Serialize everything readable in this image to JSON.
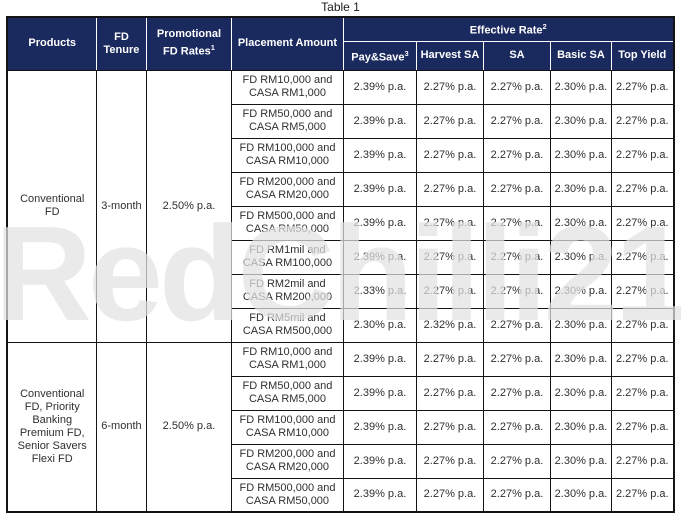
{
  "title": "Table 1",
  "watermark": "RedChilli21",
  "colors": {
    "header_bg": "#1b2a5e",
    "header_text": "#ffffff",
    "body_text": "#2f2f2f",
    "border": "#141414",
    "watermark_color": "#e2e2e2"
  },
  "header": {
    "products": "Products",
    "fd_tenure": "FD Tenure",
    "promo_rates": "Promotional FD Rates",
    "promo_rates_sup": "1",
    "placement": "Placement Amount",
    "effective_rate": "Effective Rate",
    "effective_rate_sup": "2",
    "sub": [
      {
        "label": "Pay&Save",
        "sup": "3"
      },
      {
        "label": "Harvest SA",
        "sup": ""
      },
      {
        "label": "SA",
        "sup": ""
      },
      {
        "label": "Basic SA",
        "sup": ""
      },
      {
        "label": "Top Yield",
        "sup": ""
      }
    ]
  },
  "groups": [
    {
      "product": "Conventional FD",
      "tenure": "3-month",
      "promo_rate": "2.50% p.a.",
      "rows": [
        {
          "placement_line1": "FD RM10,000 and",
          "placement_line2": "CASA RM1,000",
          "rates": [
            "2.39% p.a.",
            "2.27% p.a.",
            "2.27% p.a.",
            "2.30% p.a.",
            "2.27% p.a."
          ]
        },
        {
          "placement_line1": "FD RM50,000 and",
          "placement_line2": "CASA RM5,000",
          "rates": [
            "2.39% p.a.",
            "2.27% p.a.",
            "2.27% p.a.",
            "2.30% p.a.",
            "2.27% p.a."
          ]
        },
        {
          "placement_line1": "FD RM100,000 and",
          "placement_line2": "CASA RM10,000",
          "rates": [
            "2.39% p.a.",
            "2.27% p.a.",
            "2.27% p.a.",
            "2.30% p.a.",
            "2.27% p.a."
          ]
        },
        {
          "placement_line1": "FD RM200,000 and",
          "placement_line2": "CASA RM20,000",
          "rates": [
            "2.39% p.a.",
            "2.27% p.a.",
            "2.27% p.a.",
            "2.30% p.a.",
            "2.27% p.a."
          ]
        },
        {
          "placement_line1": "FD RM500,000 and",
          "placement_line2": "CASA RM50,000",
          "rates": [
            "2.39% p.a.",
            "2.27% p.a.",
            "2.27% p.a.",
            "2.30% p.a.",
            "2.27% p.a."
          ]
        },
        {
          "placement_line1": "FD RM1mil and",
          "placement_line2": "CASA RM100,000",
          "rates": [
            "2.39% p.a.",
            "2.27% p.a.",
            "2.27% p.a.",
            "2.30% p.a.",
            "2.27% p.a."
          ]
        },
        {
          "placement_line1": "FD RM2mil and",
          "placement_line2": "CASA RM200,000",
          "rates": [
            "2.33% p.a.",
            "2.27% p.a.",
            "2.27% p.a.",
            "2.30% p.a.",
            "2.27% p.a."
          ]
        },
        {
          "placement_line1": "FD RM5mil and",
          "placement_line2": "CASA RM500,000",
          "rates": [
            "2.30% p.a.",
            "2.32% p.a.",
            "2.27% p.a.",
            "2.30% p.a.",
            "2.27% p.a."
          ]
        }
      ]
    },
    {
      "product": "Conventional FD, Priority Banking Premium FD, Senior Savers Flexi FD",
      "tenure": "6-month",
      "promo_rate": "2.50% p.a.",
      "rows": [
        {
          "placement_line1": "FD RM10,000 and",
          "placement_line2": "CASA RM1,000",
          "rates": [
            "2.39% p.a.",
            "2.27% p.a.",
            "2.27% p.a.",
            "2.30% p.a.",
            "2.27% p.a."
          ]
        },
        {
          "placement_line1": "FD RM50,000 and",
          "placement_line2": "CASA RM5,000",
          "rates": [
            "2.39% p.a.",
            "2.27% p.a.",
            "2.27% p.a.",
            "2.30% p.a.",
            "2.27% p.a."
          ]
        },
        {
          "placement_line1": "FD RM100,000 and",
          "placement_line2": "CASA RM10,000",
          "rates": [
            "2.39% p.a.",
            "2.27% p.a.",
            "2.27% p.a.",
            "2.30% p.a.",
            "2.27% p.a."
          ]
        },
        {
          "placement_line1": "FD RM200,000 and",
          "placement_line2": "CASA RM20,000",
          "rates": [
            "2.39% p.a.",
            "2.27% p.a.",
            "2.27% p.a.",
            "2.30% p.a.",
            "2.27% p.a."
          ]
        },
        {
          "placement_line1": "FD RM500,000 and",
          "placement_line2": "CASA RM50,000",
          "rates": [
            "2.39% p.a.",
            "2.27% p.a.",
            "2.27% p.a.",
            "2.30% p.a.",
            "2.27% p.a."
          ]
        }
      ]
    }
  ]
}
